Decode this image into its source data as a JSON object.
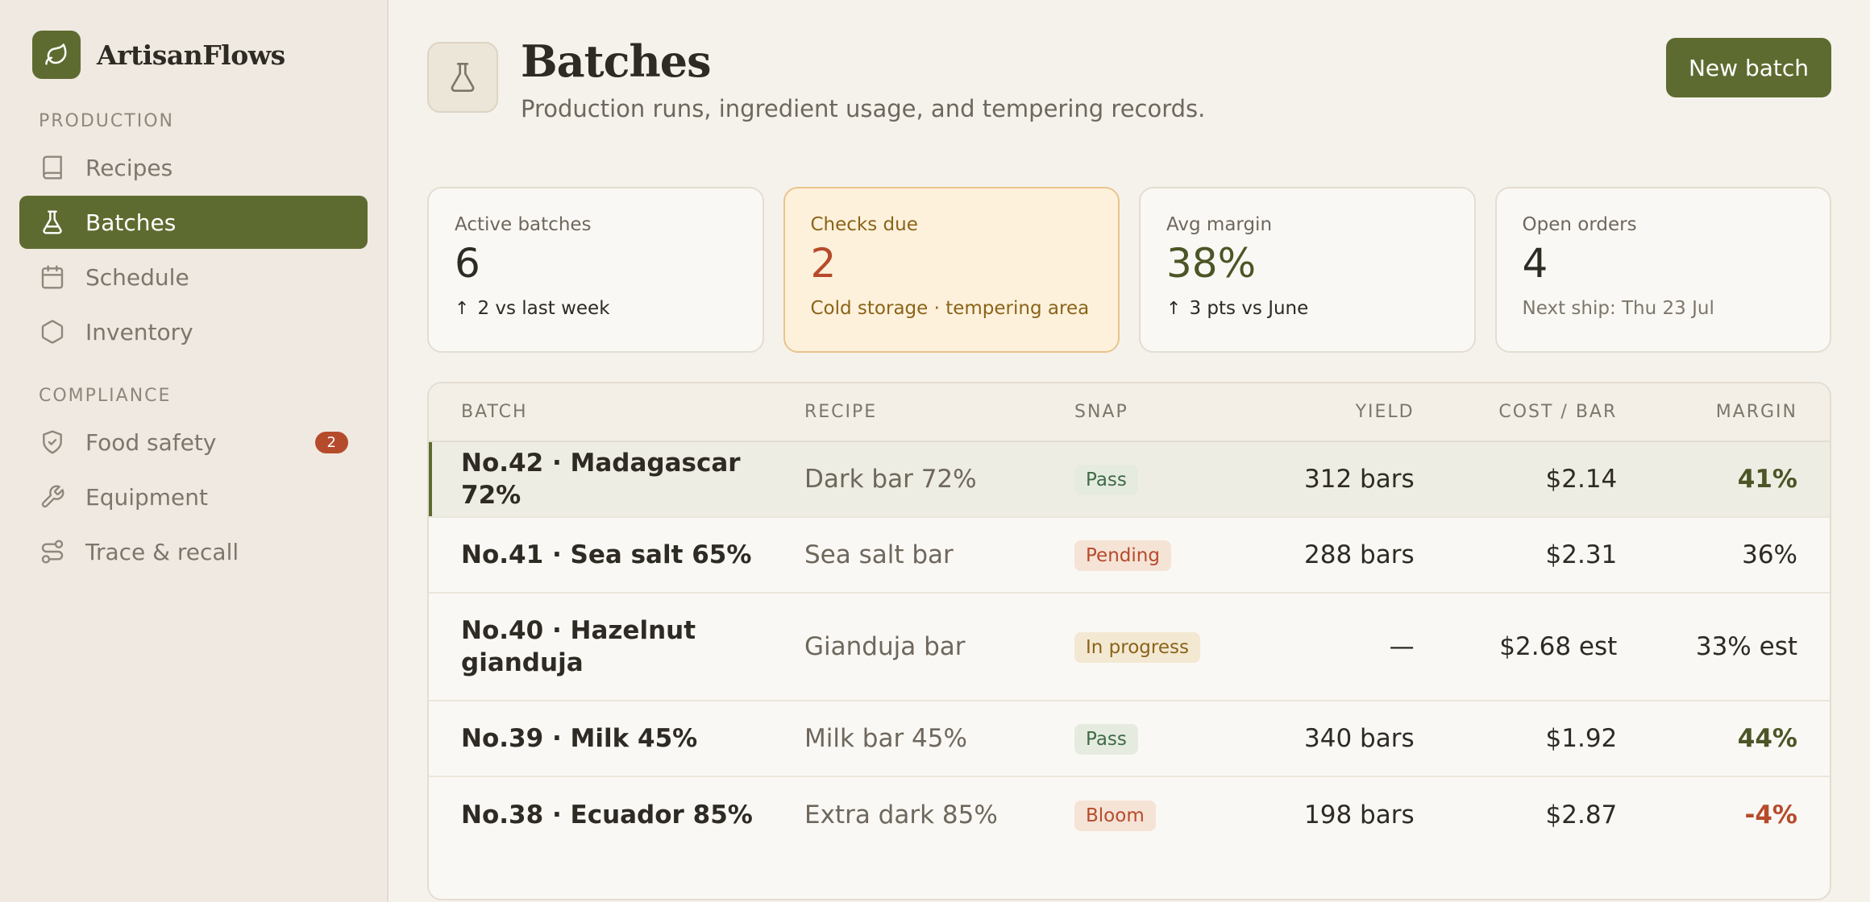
{
  "app": {
    "name": "ArtisanFlows"
  },
  "sidebar": {
    "sections": [
      {
        "label": "PRODUCTION"
      },
      {
        "label": "COMPLIANCE"
      }
    ],
    "items": [
      {
        "label": "Recipes",
        "icon": "book-icon"
      },
      {
        "label": "Batches",
        "icon": "flask-icon",
        "active": true
      },
      {
        "label": "Schedule",
        "icon": "calendar-icon"
      },
      {
        "label": "Inventory",
        "icon": "hexagon-icon"
      },
      {
        "label": "Food safety",
        "icon": "shield-check-icon",
        "badge": "2"
      },
      {
        "label": "Equipment",
        "icon": "wrench-icon"
      },
      {
        "label": "Trace & recall",
        "icon": "route-icon"
      }
    ]
  },
  "header": {
    "title": "Batches",
    "subtitle": "Production runs, ingredient usage, and tempering records.",
    "new_batch_label": "New batch"
  },
  "cards": [
    {
      "label": "Active batches",
      "value": "6",
      "note": "2 vs last week"
    },
    {
      "label": "Checks due",
      "value": "2",
      "note": "Cold storage · tempering area"
    },
    {
      "label": "Avg margin",
      "value": "38%",
      "note": "3 pts vs June"
    },
    {
      "label": "Open orders",
      "value": "4",
      "note": "Next ship: Thu 23 Jul"
    }
  ],
  "table": {
    "columns": [
      "BATCH",
      "RECIPE",
      "SNAP",
      "YIELD",
      "COST / BAR",
      "MARGIN"
    ],
    "rows": [
      {
        "batch": "No.42 · Madagascar 72%",
        "recipe": "Dark bar 72%",
        "snap": "Pass",
        "yield": "312 bars",
        "cost": "$2.14",
        "margin": "41%"
      },
      {
        "batch": "No.41 · Sea salt 65%",
        "recipe": "Sea salt bar",
        "snap": "Pending",
        "yield": "288 bars",
        "cost": "$2.31",
        "margin": "36%"
      },
      {
        "batch": "No.40 · Hazelnut gianduja",
        "recipe": "Gianduja bar",
        "snap": "In progress",
        "yield": "—",
        "cost": "$2.68 est",
        "margin": "33% est"
      },
      {
        "batch": "No.39 · Milk 45%",
        "recipe": "Milk bar 45%",
        "snap": "Pass",
        "yield": "340 bars",
        "cost": "$1.92",
        "margin": "44%"
      },
      {
        "batch": "No.38 · Ecuador 85%",
        "recipe": "Extra dark 85%",
        "snap": "Bloom",
        "yield": "198 bars",
        "cost": "$2.87",
        "margin": "-4%"
      }
    ]
  },
  "colors": {
    "accent": "#5e6b30",
    "warning": "#b64b2b",
    "background": "#f5f2ec"
  }
}
